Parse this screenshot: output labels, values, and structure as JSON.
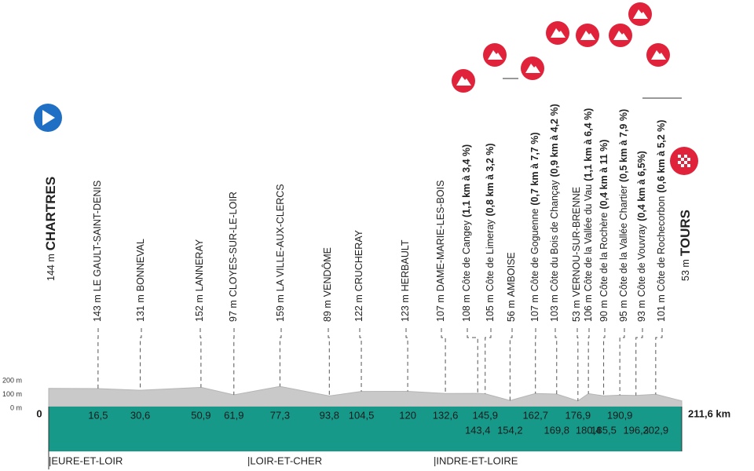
{
  "start": {
    "altitude": {
      "value": 144,
      "label": "144 m"
    },
    "name": "CHARTRES",
    "km": {
      "value": 0,
      "label": "0"
    }
  },
  "waypoints": [
    {
      "altitude": {
        "value": 143,
        "label": "143 m"
      },
      "name": "LE GAULT-SAINT-DENIS",
      "km": {
        "value": 16.5,
        "label": "16,5"
      }
    },
    {
      "altitude": {
        "value": 131,
        "label": "131 m"
      },
      "name": "BONNEVAL",
      "km": {
        "value": 30.6,
        "label": "30,6"
      }
    },
    {
      "altitude": {
        "value": 152,
        "label": "152 m"
      },
      "name": "LANNERAY",
      "km": {
        "value": 50.9,
        "label": "50,9"
      }
    },
    {
      "altitude": {
        "value": 97,
        "label": "97 m"
      },
      "name": "CLOYES-SUR-LE-LOIR",
      "km": {
        "value": 61.9,
        "label": "61,9"
      }
    },
    {
      "altitude": {
        "value": 159,
        "label": "159 m"
      },
      "name": "LA VILLE-AUX-CLERCS",
      "km": {
        "value": 77.3,
        "label": "77,3"
      }
    },
    {
      "altitude": {
        "value": 89,
        "label": "89 m"
      },
      "name": "VENDÔME",
      "km": {
        "value": 93.8,
        "label": "93,8"
      }
    },
    {
      "altitude": {
        "value": 122,
        "label": "122 m"
      },
      "name": "CRUCHERAY",
      "km": {
        "value": 104.5,
        "label": "104,5"
      }
    },
    {
      "altitude": {
        "value": 123,
        "label": "123 m"
      },
      "name": "HERBAULT",
      "km": {
        "value": 120,
        "label": "120"
      }
    },
    {
      "altitude": {
        "value": 107,
        "label": "107 m"
      },
      "name": "DAME-MARIE-LES-BOIS",
      "km": {
        "value": 132.6,
        "label": "132,6"
      }
    },
    {
      "altitude": {
        "value": 108,
        "label": "108 m"
      },
      "name": "Côte de Cangey",
      "detail": "(1,1 km à 3,4 %)",
      "km": {
        "value": 143.4,
        "label": "143,4"
      }
    },
    {
      "altitude": {
        "value": 105,
        "label": "105 m"
      },
      "name": "Côte de Limeray",
      "detail": "(0,8 km à 3,2 %)",
      "km": {
        "value": 145.9,
        "label": "145,9"
      }
    },
    {
      "altitude": {
        "value": 56,
        "label": "56 m"
      },
      "name": "AMBOISE",
      "km": {
        "value": 154.2,
        "label": "154,2"
      }
    },
    {
      "altitude": {
        "value": 107,
        "label": "107 m"
      },
      "name": "Côte de Goguenne",
      "detail": "(0,7 km à 7,7 %)",
      "km": {
        "value": 162.7,
        "label": "162,7"
      }
    },
    {
      "altitude": {
        "value": 103,
        "label": "103 m"
      },
      "name": "Côte du Bois de Chançay",
      "detail": "(0,9 km à 4,2 %)",
      "km": {
        "value": 169.8,
        "label": "169,8"
      }
    },
    {
      "altitude": {
        "value": 53,
        "label": "53 m"
      },
      "name": "VERNOU-SUR-BRENNE",
      "km": {
        "value": 176.9,
        "label": "176,9"
      }
    },
    {
      "altitude": {
        "value": 106,
        "label": "106 m"
      },
      "name": "Côte de la Vallée du Vau",
      "detail": "(1,1 km à 6,4 %)",
      "km": {
        "value": 180.4,
        "label": "180,4"
      }
    },
    {
      "altitude": {
        "value": 90,
        "label": "90 m"
      },
      "name": "Côte de la Rochère",
      "detail": "(0,4 km à 11 %)",
      "km": {
        "value": 185.5,
        "label": "185,5"
      }
    },
    {
      "altitude": {
        "value": 95,
        "label": "95 m"
      },
      "name": "Côte de la Vallée Chartier",
      "detail": "(0,5 km à 7,9 %)",
      "km": {
        "value": 190.9,
        "label": "190,9"
      }
    },
    {
      "altitude": {
        "value": 93,
        "label": "93 m"
      },
      "name": "Côte de Vouvray",
      "detail": "(0,4 km à 6,5%)",
      "km": {
        "value": 196.3,
        "label": "196,3"
      }
    },
    {
      "altitude": {
        "value": 101,
        "label": "101 m"
      },
      "name": "Côte de Rochecorbon",
      "detail": "(0,6 km à 5,2 %)",
      "km": {
        "value": 202.9,
        "label": "202,9"
      }
    }
  ],
  "finish": {
    "altitude": {
      "value": 53,
      "label": "53 m"
    },
    "name": "TOURS",
    "km": {
      "value": 211.6,
      "label": "211,6 km"
    }
  },
  "altitude_scale": [
    {
      "value": 200,
      "label": "200 m"
    },
    {
      "value": 100,
      "label": "100 m"
    },
    {
      "value": 0,
      "label": "0 m"
    }
  ],
  "regions": [
    "|EURE-ET-LOIR",
    "|LOIR-ET-CHER",
    "|INDRE-ET-LOIRE"
  ]
}
